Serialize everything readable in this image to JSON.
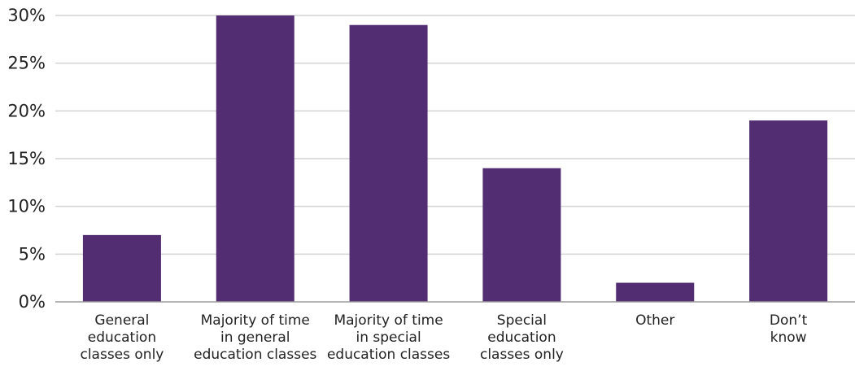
{
  "chart_data": {
    "type": "bar",
    "title": "",
    "xlabel": "",
    "ylabel": "",
    "categories": [
      "General education classes only",
      "Majority of time in general education classes",
      "Majority of time in special education classes",
      "Special education classes only",
      "Other",
      "Don’t know"
    ],
    "category_label_lines": [
      [
        "General",
        "education",
        "classes only"
      ],
      [
        "Majority of time",
        "in general",
        "education classes"
      ],
      [
        "Majority of time",
        "in special",
        "education classes"
      ],
      [
        "Special",
        "education",
        "classes only"
      ],
      [
        "Other"
      ],
      [
        "Don’t",
        "know"
      ]
    ],
    "values": [
      7,
      30,
      29,
      14,
      2,
      19
    ],
    "ylim": [
      0,
      30
    ],
    "yticks": [
      0,
      5,
      10,
      15,
      20,
      25,
      30
    ],
    "ytick_labels": [
      "0%",
      "5%",
      "10%",
      "15%",
      "20%",
      "25%",
      "30%"
    ],
    "grid": true,
    "bar_color": "#522d72"
  }
}
